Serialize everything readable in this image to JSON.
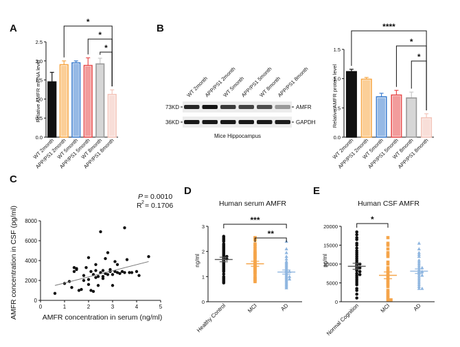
{
  "colors": {
    "black": "#111111",
    "orange": "#f7a744",
    "blue": "#3f7fcf",
    "red": "#e84b4b",
    "gray": "#c8c8c8",
    "pink": "#f3c3b8",
    "orange_dot": "#f5a54a",
    "blue_dot": "#8fb6e0"
  },
  "panel_labels": [
    "A",
    "B",
    "C",
    "D",
    "E"
  ],
  "blot": {
    "lanes": [
      "WT 2month",
      "APP/PS1 2month",
      "WT 5month",
      "APP/PS1 5month",
      "WT 8month",
      "APP/PS1 8month"
    ],
    "rows": [
      {
        "kd": "73KD",
        "protein": "AMFR",
        "intensities": [
          0.85,
          0.95,
          0.75,
          0.7,
          0.65,
          0.25
        ]
      },
      {
        "kd": "36KD",
        "protein": "GAPDH",
        "intensities": [
          0.92,
          0.92,
          0.92,
          0.92,
          0.92,
          0.9
        ]
      }
    ],
    "caption": "Mice Hippocampus"
  },
  "chart_data": [
    {
      "panel": "A",
      "type": "bar",
      "ylabel": "Relative AMFR mRNA level",
      "ylim": [
        0,
        2.5
      ],
      "yticks": [
        "0.0",
        "0.5",
        "1.0",
        "1.5",
        "2.0",
        "2.5"
      ],
      "categories": [
        "WT 2month",
        "APP/PS1 2month",
        "WT 5month",
        "APP/PS1 5month",
        "WT 8month",
        "APP/PS1 8month"
      ],
      "values": [
        1.45,
        1.9,
        1.95,
        1.88,
        1.92,
        1.12
      ],
      "errors": [
        0.25,
        0.1,
        0.05,
        0.2,
        0.15,
        0.12
      ],
      "colors": [
        "black",
        "orange",
        "blue",
        "red",
        "gray",
        "pink"
      ],
      "significance": [
        {
          "from": 1,
          "to": 5,
          "label": "*"
        },
        {
          "from": 3,
          "to": 5,
          "label": "*"
        },
        {
          "from": 4,
          "to": 5,
          "label": "*"
        }
      ]
    },
    {
      "panel": "B",
      "type": "bar",
      "ylabel": "Relative AMFR protein level",
      "ylim": [
        0,
        1.5
      ],
      "yticks": [
        "0.0",
        "0.5",
        "1.0",
        "1.5"
      ],
      "categories": [
        "WT 2month",
        "APP/PS1 2month",
        "WT 5month",
        "APP/PS1 5month",
        "WT 8month",
        "APP/PS1 8month"
      ],
      "values": [
        1.12,
        0.99,
        0.69,
        0.72,
        0.67,
        0.33
      ],
      "errors": [
        0.04,
        0.03,
        0.06,
        0.08,
        0.1,
        0.07
      ],
      "colors": [
        "black",
        "orange",
        "blue",
        "red",
        "gray",
        "pink"
      ],
      "significance": [
        {
          "from": 0,
          "to": 5,
          "label": "****"
        },
        {
          "from": 3,
          "to": 5,
          "label": "*"
        },
        {
          "from": 4,
          "to": 5,
          "label": "*"
        }
      ]
    },
    {
      "panel": "C",
      "type": "scatter",
      "xlabel": "AMFR concentration in serum (ng/ml)",
      "ylabel": "AMFR concentration in CSF (pg/ml)",
      "xlim": [
        0,
        5
      ],
      "ylim": [
        0,
        8000
      ],
      "xticks": [
        "0",
        "1",
        "2",
        "3",
        "4",
        "5"
      ],
      "yticks": [
        "0",
        "2000",
        "4000",
        "6000",
        "8000"
      ],
      "stats": {
        "p_prefix": "P",
        "p_value": "= 0.0010",
        "r2_prefix": "R",
        "r2_value": "= 0.1706"
      },
      "fit": {
        "x0": 0.6,
        "y0": 1500,
        "x1": 4.5,
        "y1": 3900
      },
      "x": [
        0.6,
        1.0,
        1.2,
        1.3,
        1.4,
        1.4,
        1.5,
        1.6,
        1.7,
        1.8,
        1.8,
        1.9,
        2.0,
        2.0,
        2.1,
        2.1,
        2.2,
        2.2,
        2.3,
        2.3,
        2.4,
        2.4,
        2.5,
        2.5,
        2.6,
        2.6,
        2.7,
        2.7,
        2.8,
        2.8,
        2.9,
        2.9,
        3.0,
        3.0,
        3.1,
        3.1,
        3.2,
        3.2,
        3.3,
        3.4,
        3.5,
        3.6,
        3.7,
        3.8,
        4.0,
        4.1,
        4.5,
        2.6,
        2.0,
        1.5,
        2.3,
        3.5
      ],
      "y": [
        700,
        1700,
        1900,
        1300,
        3300,
        2900,
        3200,
        1000,
        1100,
        2500,
        2000,
        3300,
        2100,
        1600,
        1000,
        2900,
        900,
        2600,
        3600,
        3000,
        2400,
        1500,
        6900,
        2800,
        2400,
        2200,
        4200,
        2700,
        4800,
        2600,
        3100,
        2900,
        1500,
        2600,
        3900,
        2900,
        3600,
        2800,
        2700,
        2900,
        7300,
        4100,
        2800,
        2800,
        2900,
        2500,
        4400,
        3000,
        4300,
        3100,
        2300,
        2800
      ]
    },
    {
      "panel": "D",
      "type": "scatter",
      "title": "Human serum AMFR",
      "ylabel": "ng/ml",
      "ylim": [
        0,
        3
      ],
      "yticks": [
        "0",
        "1",
        "2",
        "3"
      ],
      "categories": [
        "Healthy Control",
        "MCI",
        "AD"
      ],
      "means": [
        1.68,
        1.51,
        1.18
      ],
      "sems": [
        0.09,
        0.1,
        0.08
      ],
      "groups": [
        [
          2.6,
          2.55,
          2.5,
          2.45,
          2.4,
          2.3,
          2.25,
          2.2,
          2.15,
          2.1,
          2.05,
          2.0,
          1.95,
          1.9,
          1.85,
          1.8,
          1.8,
          1.75,
          1.7,
          1.7,
          1.65,
          1.6,
          1.55,
          1.5,
          1.45,
          1.4,
          1.35,
          1.3,
          1.25,
          1.2,
          1.1,
          1.0,
          0.95,
          0.9,
          0.85,
          0.8,
          0.75
        ],
        [
          2.55,
          2.5,
          2.45,
          2.3,
          2.2,
          2.1,
          2.0,
          1.95,
          1.9,
          1.85,
          1.8,
          1.75,
          1.7,
          1.6,
          1.55,
          1.5,
          1.45,
          1.4,
          1.35,
          1.3,
          1.25,
          1.2,
          1.15,
          1.1,
          1.0,
          0.95,
          0.9,
          0.85,
          0.8
        ],
        [
          2.4,
          2.1,
          1.95,
          1.8,
          1.7,
          1.6,
          1.55,
          1.5,
          1.45,
          1.4,
          1.35,
          1.3,
          1.25,
          1.2,
          1.2,
          1.15,
          1.1,
          1.05,
          1.0,
          1.0,
          0.95,
          0.9,
          0.9,
          0.85,
          0.8,
          0.75,
          0.7,
          0.65,
          0.6,
          0.55
        ]
      ],
      "colors": [
        "black",
        "orange_dot",
        "blue_dot"
      ],
      "markers": [
        "circle",
        "square",
        "triangle"
      ],
      "significance": [
        {
          "from": 0,
          "to": 2,
          "label": "***"
        },
        {
          "from": 1,
          "to": 2,
          "label": "**"
        }
      ]
    },
    {
      "panel": "E",
      "type": "scatter",
      "title": "Human CSF AMFR",
      "ylabel": "pg/ml",
      "ylim": [
        0,
        20000
      ],
      "yticks": [
        "0",
        "5000",
        "10000",
        "15000",
        "20000"
      ],
      "categories": [
        "Normal Cognition",
        "MCI",
        "AD"
      ],
      "means": [
        9400,
        7000,
        8100
      ],
      "sems": [
        800,
        900,
        600
      ],
      "groups": [
        [
          18500,
          17800,
          17000,
          16500,
          15500,
          15000,
          14200,
          13500,
          13000,
          12500,
          12000,
          11500,
          11000,
          10500,
          10200,
          10000,
          9800,
          9500,
          9200,
          9000,
          8800,
          8500,
          8200,
          8000,
          7500,
          7200,
          7000,
          6500,
          6000,
          5500,
          5000,
          4500,
          3500,
          3000,
          2000,
          1000
        ],
        [
          17000,
          15500,
          15000,
          14000,
          13000,
          12500,
          12000,
          10500,
          10000,
          9000,
          8500,
          8000,
          7500,
          7000,
          6500,
          6000,
          5500,
          5000,
          4500,
          4000,
          3000,
          2500,
          2000,
          1500,
          1000,
          500,
          500
        ],
        [
          15500,
          14000,
          13000,
          12500,
          12000,
          11000,
          10500,
          10000,
          9500,
          9000,
          9000,
          8500,
          8000,
          8000,
          7500,
          7000,
          7000,
          6500,
          6000,
          5500,
          5000,
          4500,
          4000,
          3500,
          3500
        ]
      ],
      "colors": [
        "black",
        "orange_dot",
        "blue_dot"
      ],
      "markers": [
        "circle",
        "square",
        "triangle"
      ],
      "significance": [
        {
          "from": 0,
          "to": 1,
          "label": "*"
        }
      ]
    }
  ]
}
